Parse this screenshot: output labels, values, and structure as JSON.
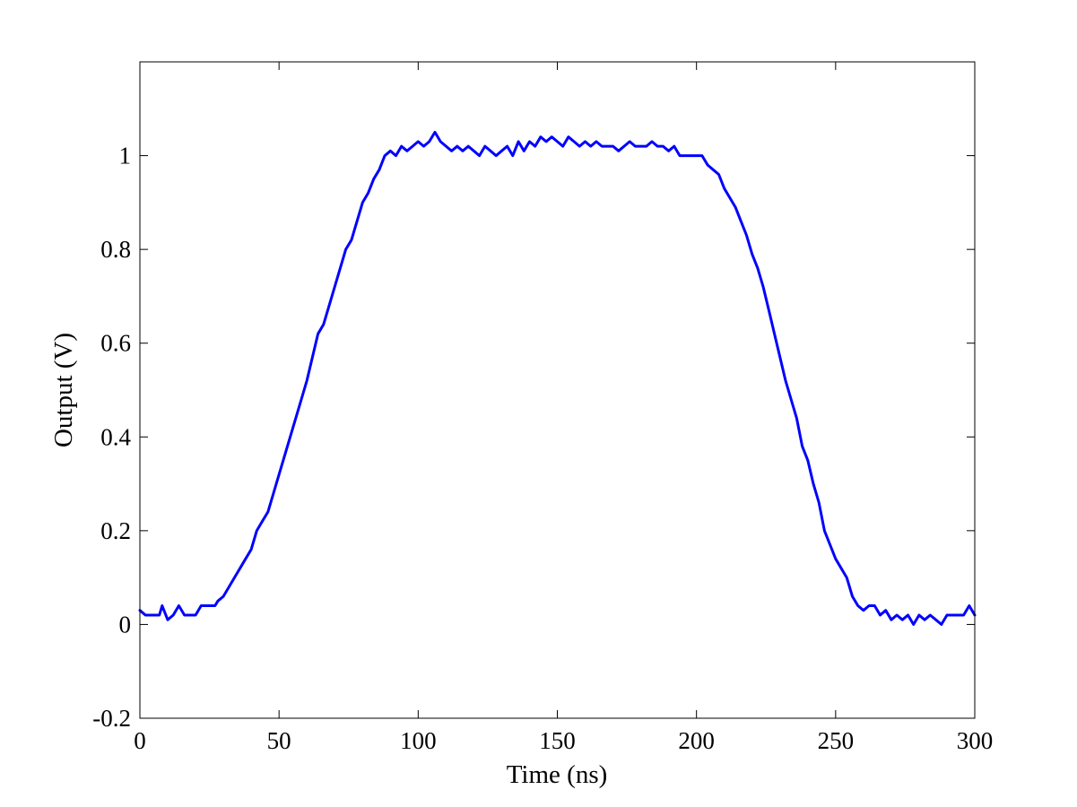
{
  "chart_data": {
    "type": "line",
    "title": "",
    "xlabel": "Time (ns)",
    "ylabel": "Output (V)",
    "xlim": [
      0,
      300
    ],
    "ylim": [
      -0.2,
      1.2
    ],
    "xticks": [
      0,
      50,
      100,
      150,
      200,
      250,
      300
    ],
    "yticks": [
      -0.2,
      0,
      0.2,
      0.4,
      0.6,
      0.8,
      1
    ],
    "xtick_labels": [
      "0",
      "50",
      "100",
      "150",
      "200",
      "250",
      "300"
    ],
    "ytick_labels": [
      "-0.2",
      "0",
      "0.2",
      "0.4",
      "0.6",
      "0.8",
      "1"
    ],
    "grid": false,
    "line_color": "#0000ff",
    "series": [
      {
        "x": [
          0,
          2,
          5,
          7,
          8,
          10,
          12,
          14,
          16,
          18,
          20,
          22,
          25,
          27,
          28,
          30,
          32,
          34,
          36,
          38,
          40,
          42,
          44,
          46,
          48,
          50,
          52,
          54,
          56,
          58,
          60,
          62,
          64,
          66,
          68,
          70,
          72,
          74,
          76,
          78,
          80,
          82,
          84,
          86,
          88,
          90,
          92,
          94,
          96,
          98,
          100,
          102,
          104,
          106,
          108,
          110,
          112,
          114,
          116,
          118,
          120,
          122,
          124,
          126,
          128,
          130,
          132,
          134,
          136,
          138,
          140,
          142,
          144,
          146,
          148,
          150,
          152,
          154,
          156,
          158,
          160,
          162,
          164,
          166,
          168,
          170,
          172,
          174,
          176,
          178,
          180,
          182,
          184,
          186,
          188,
          190,
          192,
          194,
          196,
          198,
          200,
          202,
          204,
          206,
          208,
          210,
          212,
          214,
          216,
          218,
          220,
          222,
          224,
          226,
          228,
          230,
          232,
          234,
          236,
          238,
          240,
          242,
          244,
          246,
          248,
          250,
          252,
          254,
          256,
          258,
          260,
          262,
          264,
          266,
          268,
          270,
          272,
          274,
          276,
          278,
          280,
          282,
          284,
          286,
          288,
          290,
          292,
          294,
          296,
          298,
          300
        ],
        "y": [
          0.03,
          0.02,
          0.02,
          0.02,
          0.04,
          0.01,
          0.02,
          0.04,
          0.02,
          0.02,
          0.02,
          0.04,
          0.04,
          0.04,
          0.05,
          0.06,
          0.08,
          0.1,
          0.12,
          0.14,
          0.16,
          0.2,
          0.22,
          0.24,
          0.28,
          0.32,
          0.36,
          0.4,
          0.44,
          0.48,
          0.52,
          0.57,
          0.62,
          0.64,
          0.68,
          0.72,
          0.76,
          0.8,
          0.82,
          0.86,
          0.9,
          0.92,
          0.95,
          0.97,
          1.0,
          1.01,
          1.0,
          1.02,
          1.01,
          1.02,
          1.03,
          1.02,
          1.03,
          1.05,
          1.03,
          1.02,
          1.01,
          1.02,
          1.01,
          1.02,
          1.01,
          1.0,
          1.02,
          1.01,
          1.0,
          1.01,
          1.02,
          1.0,
          1.03,
          1.01,
          1.03,
          1.02,
          1.04,
          1.03,
          1.04,
          1.03,
          1.02,
          1.04,
          1.03,
          1.02,
          1.03,
          1.02,
          1.03,
          1.02,
          1.02,
          1.02,
          1.01,
          1.02,
          1.03,
          1.02,
          1.02,
          1.02,
          1.03,
          1.02,
          1.02,
          1.01,
          1.02,
          1.0,
          1.0,
          1.0,
          1.0,
          1.0,
          0.98,
          0.97,
          0.96,
          0.93,
          0.91,
          0.89,
          0.86,
          0.83,
          0.79,
          0.76,
          0.72,
          0.67,
          0.62,
          0.57,
          0.52,
          0.48,
          0.44,
          0.38,
          0.35,
          0.3,
          0.26,
          0.2,
          0.17,
          0.14,
          0.12,
          0.1,
          0.06,
          0.04,
          0.03,
          0.04,
          0.04,
          0.02,
          0.03,
          0.01,
          0.02,
          0.01,
          0.02,
          0.0,
          0.02,
          0.01,
          0.02,
          0.01,
          0.0,
          0.02,
          0.02,
          0.02,
          0.02,
          0.04,
          0.02
        ]
      }
    ]
  }
}
